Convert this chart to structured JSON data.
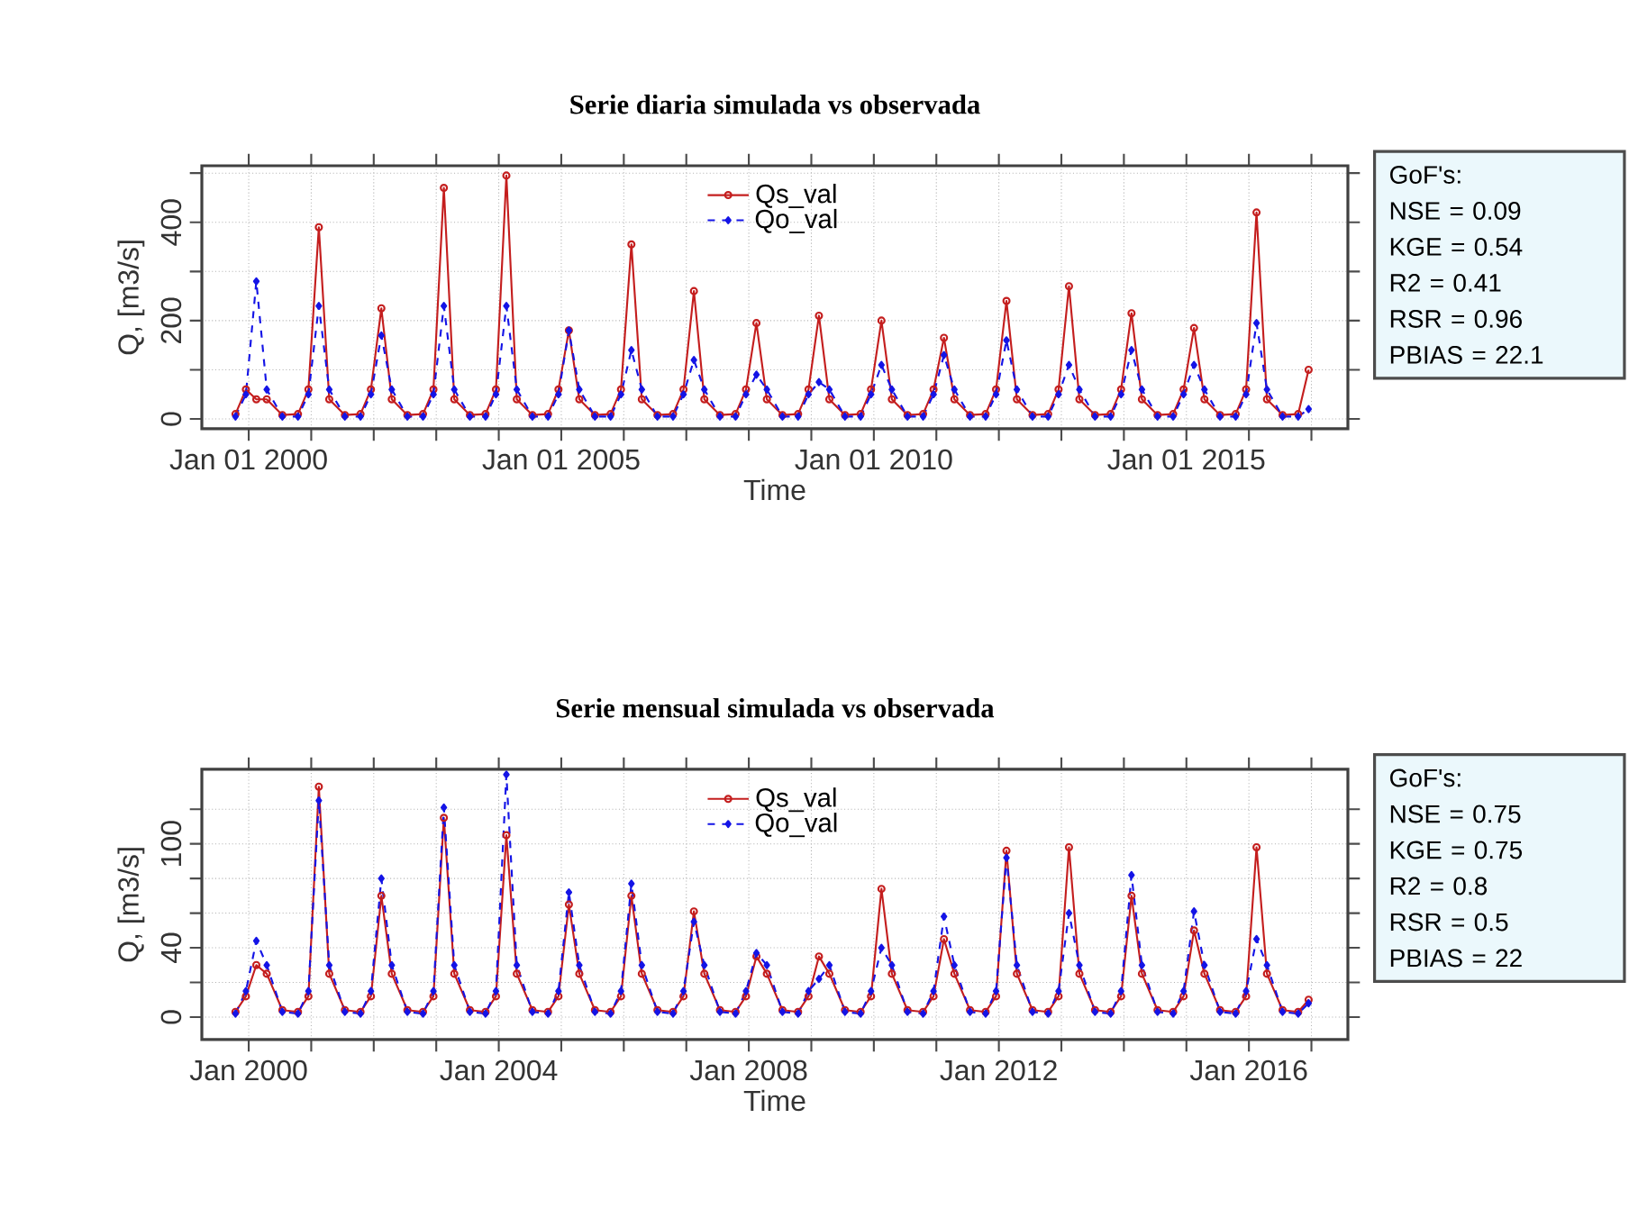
{
  "chart_data": [
    {
      "type": "line",
      "title": "Serie diaria simulada vs observada",
      "xlabel": "Time",
      "ylabel": "Q, [m3/s]",
      "x": [
        "1999-10-15",
        "1999-12-15",
        "2000-02-15",
        "2000-04-15",
        "2000-07-15",
        "2000-10-15",
        "2000-12-15",
        "2001-02-15",
        "2001-04-15",
        "2001-07-15",
        "2001-10-15",
        "2001-12-15",
        "2002-02-15",
        "2002-04-15",
        "2002-07-15",
        "2002-10-15",
        "2002-12-15",
        "2003-02-15",
        "2003-04-15",
        "2003-07-15",
        "2003-10-15",
        "2003-12-15",
        "2004-02-15",
        "2004-04-15",
        "2004-07-15",
        "2004-10-15",
        "2004-12-15",
        "2005-02-15",
        "2005-04-15",
        "2005-07-15",
        "2005-10-15",
        "2005-12-15",
        "2006-02-15",
        "2006-04-15",
        "2006-07-15",
        "2006-10-15",
        "2006-12-15",
        "2007-02-15",
        "2007-04-15",
        "2007-07-15",
        "2007-10-15",
        "2007-12-15",
        "2008-02-15",
        "2008-04-15",
        "2008-07-15",
        "2008-10-15",
        "2008-12-15",
        "2009-02-15",
        "2009-04-15",
        "2009-07-15",
        "2009-10-15",
        "2009-12-15",
        "2010-02-15",
        "2010-04-15",
        "2010-07-15",
        "2010-10-15",
        "2010-12-15",
        "2011-02-15",
        "2011-04-15",
        "2011-07-15",
        "2011-10-15",
        "2011-12-15",
        "2012-02-15",
        "2012-04-15",
        "2012-07-15",
        "2012-10-15",
        "2012-12-15",
        "2013-02-15",
        "2013-04-15",
        "2013-07-15",
        "2013-10-15",
        "2013-12-15",
        "2014-02-15",
        "2014-04-15",
        "2014-07-15",
        "2014-10-15",
        "2014-12-15",
        "2015-02-15",
        "2015-04-15",
        "2015-07-15",
        "2015-10-15",
        "2015-12-15",
        "2016-02-15",
        "2016-04-15",
        "2016-07-15",
        "2016-10-15",
        "2016-12-15"
      ],
      "series": [
        {
          "name": "Qs_val",
          "color": "#c41e1e",
          "marker": "circle",
          "line_style": "solid",
          "values": [
            10,
            60,
            40,
            40,
            8,
            10,
            60,
            390,
            40,
            8,
            10,
            60,
            225,
            40,
            8,
            10,
            60,
            470,
            40,
            8,
            10,
            60,
            495,
            40,
            8,
            10,
            60,
            180,
            40,
            8,
            10,
            60,
            355,
            40,
            8,
            10,
            60,
            260,
            40,
            8,
            10,
            60,
            195,
            40,
            8,
            10,
            60,
            210,
            40,
            8,
            10,
            60,
            200,
            40,
            8,
            10,
            60,
            165,
            40,
            8,
            10,
            60,
            240,
            40,
            8,
            10,
            60,
            270,
            40,
            8,
            10,
            60,
            215,
            40,
            8,
            10,
            60,
            185,
            40,
            8,
            10,
            60,
            420,
            40,
            8,
            10,
            100
          ]
        },
        {
          "name": "Qo_val",
          "color": "#1414e6",
          "marker": "diamond",
          "line_style": "dashed",
          "values": [
            5,
            50,
            280,
            60,
            5,
            5,
            50,
            230,
            60,
            5,
            5,
            50,
            170,
            60,
            5,
            5,
            50,
            230,
            60,
            5,
            5,
            50,
            230,
            60,
            5,
            5,
            50,
            180,
            60,
            5,
            5,
            50,
            140,
            60,
            5,
            5,
            50,
            120,
            60,
            5,
            5,
            50,
            90,
            60,
            5,
            5,
            50,
            75,
            60,
            5,
            5,
            50,
            110,
            60,
            5,
            5,
            50,
            130,
            60,
            5,
            5,
            50,
            160,
            60,
            5,
            5,
            50,
            110,
            60,
            5,
            5,
            50,
            140,
            60,
            5,
            5,
            50,
            110,
            60,
            5,
            5,
            50,
            195,
            60,
            5,
            5,
            20
          ]
        }
      ],
      "xlim": [
        "1999-04-01",
        "2017-08-01"
      ],
      "ylim": [
        -20,
        515
      ],
      "xticks": [
        {
          "value": "2000-01-01",
          "label": "Jan 01 2000"
        },
        {
          "value": "2001-01-01",
          "label": null
        },
        {
          "value": "2002-01-01",
          "label": null
        },
        {
          "value": "2003-01-01",
          "label": null
        },
        {
          "value": "2004-01-01",
          "label": null
        },
        {
          "value": "2005-01-01",
          "label": "Jan 01 2005"
        },
        {
          "value": "2006-01-01",
          "label": null
        },
        {
          "value": "2007-01-01",
          "label": null
        },
        {
          "value": "2008-01-01",
          "label": null
        },
        {
          "value": "2009-01-01",
          "label": null
        },
        {
          "value": "2010-01-01",
          "label": "Jan 01 2010"
        },
        {
          "value": "2011-01-01",
          "label": null
        },
        {
          "value": "2012-01-01",
          "label": null
        },
        {
          "value": "2013-01-01",
          "label": null
        },
        {
          "value": "2014-01-01",
          "label": null
        },
        {
          "value": "2015-01-01",
          "label": "Jan 01 2015"
        },
        {
          "value": "2016-01-01",
          "label": null
        },
        {
          "value": "2017-01-01",
          "label": null
        }
      ],
      "yticks": [
        0,
        {
          "value": 100,
          "label": null
        },
        200,
        {
          "value": 300,
          "label": null
        },
        400,
        {
          "value": 500,
          "label": null
        }
      ],
      "grid": true,
      "legend": "top",
      "annotations": [
        "GoF's:",
        "NSE = 0.09",
        "KGE = 0.54",
        "R2 = 0.41",
        "RSR = 0.96",
        "PBIAS = 22.1"
      ]
    },
    {
      "type": "line",
      "title": "Serie mensual simulada vs observada",
      "xlabel": "Time",
      "ylabel": "Q, [m3/s]",
      "x": [
        "1999-10-15",
        "1999-12-15",
        "2000-02-15",
        "2000-04-15",
        "2000-07-15",
        "2000-10-15",
        "2000-12-15",
        "2001-02-15",
        "2001-04-15",
        "2001-07-15",
        "2001-10-15",
        "2001-12-15",
        "2002-02-15",
        "2002-04-15",
        "2002-07-15",
        "2002-10-15",
        "2002-12-15",
        "2003-02-15",
        "2003-04-15",
        "2003-07-15",
        "2003-10-15",
        "2003-12-15",
        "2004-02-15",
        "2004-04-15",
        "2004-07-15",
        "2004-10-15",
        "2004-12-15",
        "2005-02-15",
        "2005-04-15",
        "2005-07-15",
        "2005-10-15",
        "2005-12-15",
        "2006-02-15",
        "2006-04-15",
        "2006-07-15",
        "2006-10-15",
        "2006-12-15",
        "2007-02-15",
        "2007-04-15",
        "2007-07-15",
        "2007-10-15",
        "2007-12-15",
        "2008-02-15",
        "2008-04-15",
        "2008-07-15",
        "2008-10-15",
        "2008-12-15",
        "2009-02-15",
        "2009-04-15",
        "2009-07-15",
        "2009-10-15",
        "2009-12-15",
        "2010-02-15",
        "2010-04-15",
        "2010-07-15",
        "2010-10-15",
        "2010-12-15",
        "2011-02-15",
        "2011-04-15",
        "2011-07-15",
        "2011-10-15",
        "2011-12-15",
        "2012-02-15",
        "2012-04-15",
        "2012-07-15",
        "2012-10-15",
        "2012-12-15",
        "2013-02-15",
        "2013-04-15",
        "2013-07-15",
        "2013-10-15",
        "2013-12-15",
        "2014-02-15",
        "2014-04-15",
        "2014-07-15",
        "2014-10-15",
        "2014-12-15",
        "2015-02-15",
        "2015-04-15",
        "2015-07-15",
        "2015-10-15",
        "2015-12-15",
        "2016-02-15",
        "2016-04-15",
        "2016-07-15",
        "2016-10-15",
        "2016-12-15"
      ],
      "series": [
        {
          "name": "Qs_val",
          "color": "#c41e1e",
          "marker": "circle",
          "line_style": "solid",
          "values": [
            3,
            12,
            30,
            25,
            4,
            3,
            12,
            133,
            25,
            4,
            3,
            12,
            70,
            25,
            4,
            3,
            12,
            115,
            25,
            4,
            3,
            12,
            105,
            25,
            4,
            3,
            12,
            65,
            25,
            4,
            3,
            12,
            70,
            25,
            4,
            3,
            12,
            61,
            25,
            4,
            3,
            12,
            35,
            25,
            4,
            3,
            12,
            35,
            25,
            4,
            3,
            12,
            74,
            25,
            4,
            3,
            12,
            45,
            25,
            4,
            3,
            12,
            96,
            25,
            4,
            3,
            12,
            98,
            25,
            4,
            3,
            12,
            70,
            25,
            4,
            3,
            12,
            50,
            25,
            4,
            3,
            12,
            98,
            25,
            4,
            3,
            10
          ]
        },
        {
          "name": "Qo_val",
          "color": "#1414e6",
          "marker": "diamond",
          "line_style": "dashed",
          "values": [
            2,
            15,
            44,
            30,
            3,
            2,
            15,
            125,
            30,
            3,
            2,
            15,
            80,
            30,
            3,
            2,
            15,
            121,
            30,
            3,
            2,
            15,
            140,
            30,
            3,
            2,
            15,
            72,
            30,
            3,
            2,
            15,
            77,
            30,
            3,
            2,
            15,
            55,
            30,
            3,
            2,
            15,
            37,
            30,
            3,
            2,
            15,
            22,
            30,
            3,
            2,
            15,
            40,
            30,
            3,
            2,
            15,
            58,
            30,
            3,
            2,
            15,
            92,
            30,
            3,
            2,
            15,
            60,
            30,
            3,
            2,
            15,
            82,
            30,
            3,
            2,
            15,
            61,
            30,
            3,
            2,
            15,
            45,
            30,
            3,
            2,
            8
          ]
        }
      ],
      "xlim": [
        "1999-04-01",
        "2017-08-01"
      ],
      "ylim": [
        -13,
        143
      ],
      "xticks": [
        {
          "value": "2000-01-01",
          "label": "Jan 2000"
        },
        {
          "value": "2001-01-01",
          "label": null
        },
        {
          "value": "2002-01-01",
          "label": null
        },
        {
          "value": "2003-01-01",
          "label": null
        },
        {
          "value": "2004-01-01",
          "label": "Jan 2004"
        },
        {
          "value": "2005-01-01",
          "label": null
        },
        {
          "value": "2006-01-01",
          "label": null
        },
        {
          "value": "2007-01-01",
          "label": null
        },
        {
          "value": "2008-01-01",
          "label": "Jan 2008"
        },
        {
          "value": "2009-01-01",
          "label": null
        },
        {
          "value": "2010-01-01",
          "label": null
        },
        {
          "value": "2011-01-01",
          "label": null
        },
        {
          "value": "2012-01-01",
          "label": "Jan 2012"
        },
        {
          "value": "2013-01-01",
          "label": null
        },
        {
          "value": "2014-01-01",
          "label": null
        },
        {
          "value": "2015-01-01",
          "label": null
        },
        {
          "value": "2016-01-01",
          "label": "Jan 2016"
        },
        {
          "value": "2017-01-01",
          "label": null
        }
      ],
      "yticks": [
        0,
        {
          "value": 20,
          "label": null
        },
        40,
        {
          "value": 60,
          "label": null
        },
        {
          "value": 80,
          "label": null
        },
        100,
        {
          "value": 120,
          "label": null
        }
      ],
      "grid": true,
      "legend": "top",
      "annotations": [
        "GoF's:",
        "NSE = 0.75",
        "KGE = 0.75",
        "R2 = 0.8",
        "RSR = 0.5",
        "PBIAS = 22"
      ]
    }
  ]
}
